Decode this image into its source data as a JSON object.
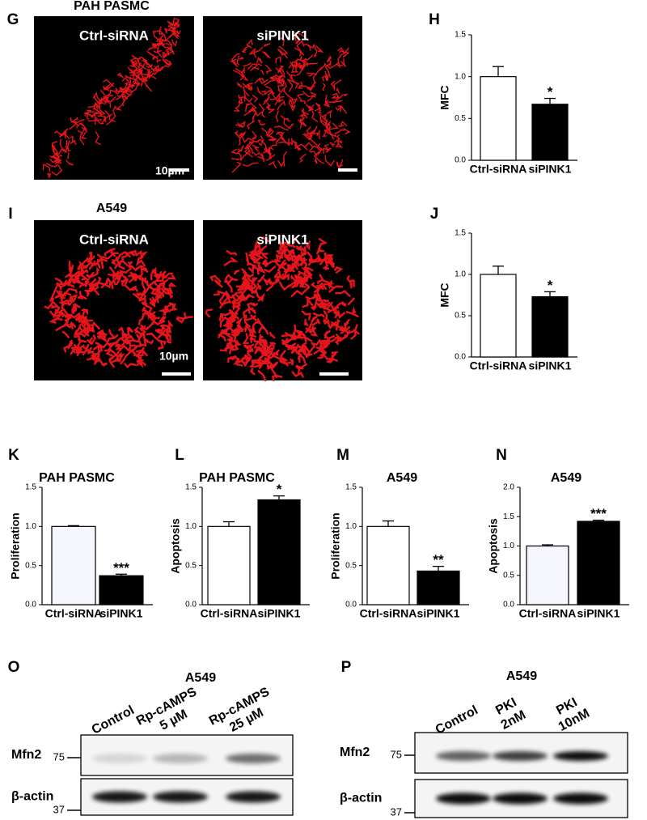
{
  "images": [
    {
      "letter": "G",
      "title": "PAH PASMC",
      "labels": [
        "Ctrl-siRNA",
        "siPINK1"
      ],
      "scale_label": "10µm"
    },
    {
      "letter": "I",
      "title": "A549",
      "labels": [
        "Ctrl-siRNA",
        "siPINK1"
      ],
      "scale_label": "10µm"
    }
  ],
  "blots": [
    {
      "letter": "O",
      "title": "A549",
      "lanes": [
        [
          "Control"
        ],
        [
          "Rp-cAMPS",
          "5 µM"
        ],
        [
          "Rp-cAMPS",
          "25 µM"
        ]
      ],
      "bands": [
        "Mfn2",
        "β-actin"
      ],
      "markers": [
        "75",
        "37"
      ]
    },
    {
      "letter": "P",
      "title": "A549",
      "lanes": [
        [
          "Control"
        ],
        [
          "PKI",
          "2nM"
        ],
        [
          "PKI",
          "10nM"
        ]
      ],
      "bands": [
        "Mfn2",
        "β-actin"
      ],
      "markers": [
        "75",
        "37"
      ]
    }
  ],
  "chart_data": [
    {
      "type": "bar",
      "letter": "H",
      "y_label": "MFC",
      "categories": [
        "Ctrl-siRNA",
        "siPINK1"
      ],
      "values": [
        1.0,
        0.67
      ],
      "errors": [
        0.12,
        0.07
      ],
      "colors": [
        "#ffffff",
        "#000000"
      ],
      "significance": "*",
      "ylim": [
        0,
        1.5
      ],
      "yticks": [
        {
          "value": 0,
          "label": "0.0"
        },
        0.5,
        {
          "value": 1,
          "label": "1.0"
        },
        1.5
      ]
    },
    {
      "type": "bar",
      "letter": "J",
      "y_label": "MFC",
      "categories": [
        "Ctrl-siRNA",
        "siPINK1"
      ],
      "values": [
        1.0,
        0.73
      ],
      "errors": [
        0.1,
        0.06
      ],
      "colors": [
        "#ffffff",
        "#000000"
      ],
      "significance": "*",
      "ylim": [
        0,
        1.5
      ],
      "yticks": [
        {
          "value": 0,
          "label": "0.0"
        },
        0.5,
        {
          "value": 1,
          "label": "1.0"
        },
        1.5
      ]
    },
    {
      "type": "bar",
      "letter": "K",
      "title": "PAH PASMC",
      "y_label": "Proliferation",
      "categories": [
        "Ctrl-siRNA",
        "siPINK1"
      ],
      "values": [
        1.0,
        0.37
      ],
      "errors": [
        0.01,
        0.02
      ],
      "colors": [
        "#f6f6ff",
        "#000000"
      ],
      "significance": "***",
      "ylim": [
        0,
        1.5
      ],
      "yticks": [
        {
          "value": 0,
          "label": "0.0"
        },
        0.5,
        {
          "value": 1,
          "label": "1.0"
        },
        1.5
      ]
    },
    {
      "type": "bar",
      "letter": "L",
      "title": "PAH PASMC",
      "y_label": "Apoptosis",
      "categories": [
        "Ctrl-siRNA",
        "siPINK1"
      ],
      "values": [
        1.0,
        1.34
      ],
      "errors": [
        0.06,
        0.05
      ],
      "colors": [
        "#ffffff",
        "#000000"
      ],
      "significance": "*",
      "ylim": [
        0,
        1.5
      ],
      "yticks": [
        {
          "value": 0,
          "label": "0.0"
        },
        0.5,
        {
          "value": 1,
          "label": "1.0"
        },
        1.5
      ]
    },
    {
      "type": "bar",
      "letter": "M",
      "title": "A549",
      "y_label": "Proliferation",
      "categories": [
        "Ctrl-siRNA",
        "siPINK1"
      ],
      "values": [
        1.0,
        0.43
      ],
      "errors": [
        0.07,
        0.06
      ],
      "colors": [
        "#ffffff",
        "#000000"
      ],
      "significance": "**",
      "ylim": [
        0,
        1.5
      ],
      "yticks": [
        {
          "value": 0,
          "label": "0.0"
        },
        0.5,
        {
          "value": 1,
          "label": "1.0"
        },
        1.5
      ]
    },
    {
      "type": "bar",
      "letter": "N",
      "title": "A549",
      "y_label": "Apoptosis",
      "categories": [
        "Ctrl-siRNA",
        "siPINK1"
      ],
      "values": [
        1.0,
        1.42
      ],
      "errors": [
        0.02,
        0.02
      ],
      "colors": [
        "#f6f6ff",
        "#000000"
      ],
      "significance": "***",
      "ylim": [
        0,
        2
      ],
      "yticks": [
        {
          "value": 0,
          "label": "0.0"
        },
        0.5,
        {
          "value": 1,
          "label": "1.0"
        },
        1.5,
        {
          "value": 2,
          "label": "2.0"
        }
      ]
    }
  ]
}
